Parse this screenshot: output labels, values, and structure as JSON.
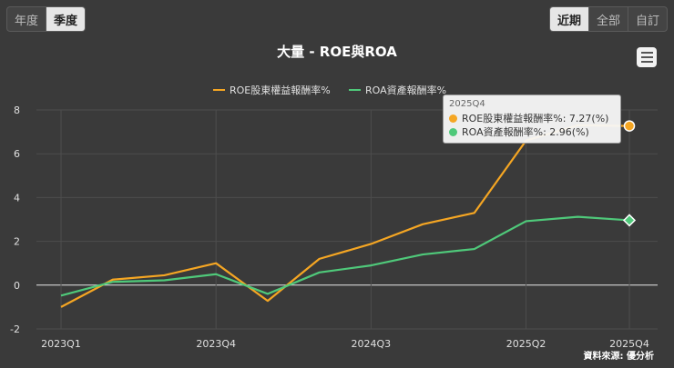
{
  "period_toggle": {
    "items": [
      "年度",
      "季度"
    ],
    "active": 1
  },
  "range_toggle": {
    "items": [
      "近期",
      "全部",
      "自訂"
    ],
    "active": 0
  },
  "colors": {
    "roe": "#f5a623",
    "roa": "#4fc97a",
    "background": "#3a3a3a",
    "grid": "#4d4d4d"
  },
  "source": "資料來源: 優分析",
  "tooltip": {
    "title": "2025Q4",
    "rows": [
      "ROE股東權益報酬率%: 7.27(%)",
      "ROA資產報酬率%: 2.96(%)"
    ]
  },
  "chart_data": {
    "type": "line",
    "title": "大量 - ROE與ROA",
    "categories": [
      "2023Q1",
      "2023Q2",
      "2023Q3",
      "2023Q4",
      "2024Q1",
      "2024Q2",
      "2024Q3",
      "2024Q4",
      "2025Q1",
      "2025Q2",
      "2025Q3",
      "2025Q4"
    ],
    "x_tick_labels": [
      "2023Q1",
      "2023Q4",
      "2024Q3",
      "2025Q2",
      "2025Q4"
    ],
    "series": [
      {
        "name": "ROE股東權益報酬率%",
        "color": "#f5a623",
        "values": [
          -1.0,
          0.25,
          0.45,
          1.0,
          -0.72,
          1.2,
          1.88,
          2.78,
          3.3,
          6.6,
          7.3,
          7.27
        ]
      },
      {
        "name": "ROA資產報酬率%",
        "color": "#4fc97a",
        "values": [
          -0.48,
          0.15,
          0.22,
          0.5,
          -0.4,
          0.58,
          0.9,
          1.4,
          1.65,
          2.92,
          3.12,
          2.96
        ]
      }
    ],
    "ylim": [
      -2,
      8
    ],
    "yticks": [
      -2,
      0,
      2,
      4,
      6,
      8
    ],
    "legend_position": "top-center",
    "grid": true
  }
}
